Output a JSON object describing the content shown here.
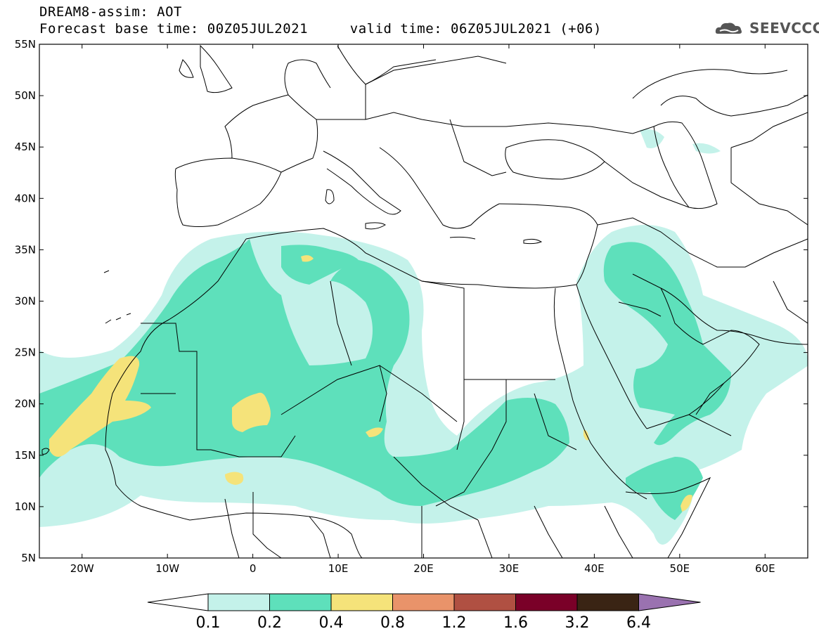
{
  "header": {
    "title": "DREAM8-assim: AOT",
    "forecast_base_label": "Forecast base time: 00Z05JUL2021",
    "valid_label": "valid time: 06Z05JUL2021 (+06)"
  },
  "logo": {
    "text": "SEEVCCC",
    "icon": "cloud-icon"
  },
  "map": {
    "lon_range": [
      -25,
      65
    ],
    "lat_range": [
      5,
      55
    ],
    "lat_ticks": [
      "55N",
      "50N",
      "45N",
      "40N",
      "35N",
      "30N",
      "25N",
      "20N",
      "15N",
      "10N",
      "5N"
    ],
    "lat_values": [
      55,
      50,
      45,
      40,
      35,
      30,
      25,
      20,
      15,
      10,
      5
    ],
    "lon_ticks": [
      "20W",
      "10W",
      "0",
      "10E",
      "20E",
      "30E",
      "40E",
      "50E",
      "60E"
    ],
    "lon_values": [
      -20,
      -10,
      0,
      10,
      20,
      30,
      40,
      50,
      60
    ]
  },
  "colorbar": {
    "labels": [
      "0.1",
      "0.2",
      "0.4",
      "0.8",
      "1.2",
      "1.6",
      "3.2",
      "6.4"
    ],
    "colors": [
      "#c4f2ea",
      "#5ee0bb",
      "#f5e37a",
      "#e9936a",
      "#b05042",
      "#7a0028",
      "#3a2414",
      "#9a72b0"
    ],
    "under_color": "#ffffff"
  },
  "colors": {
    "c1": "#c4f2ea",
    "c2": "#5ee0bb",
    "c3": "#f5e37a"
  }
}
